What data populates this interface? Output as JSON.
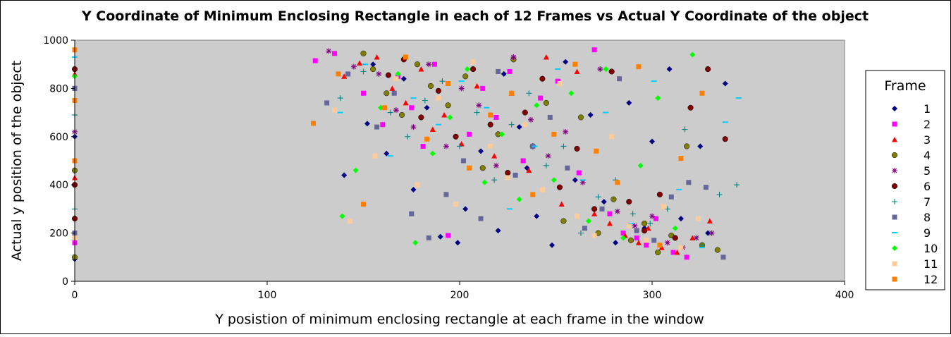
{
  "chart_data": {
    "type": "scatter",
    "title": "Y Coordinate of Minimum Enclosing Rectangle in each of 12 Frames vs Actual Y Coordinate of the object",
    "xlabel": "Y posistion of minimum enclosing rectangle at each frame in the window",
    "ylabel": "Actual y position of the object",
    "xlim": [
      0,
      400
    ],
    "ylim": [
      0,
      1000
    ],
    "x_ticks": [
      0,
      100,
      200,
      300,
      400
    ],
    "y_ticks": [
      0,
      200,
      400,
      600,
      800,
      1000
    ],
    "x_tick_labels": [
      "0",
      "100",
      "200",
      "300",
      "400"
    ],
    "y_tick_labels": [
      "0",
      "200",
      "400",
      "600",
      "800",
      "1000"
    ],
    "grid": false,
    "plot_background": "#cccccc",
    "legend": {
      "title": "Frame",
      "placement": "right"
    },
    "series": [
      {
        "name": "1",
        "color": "#000080",
        "marker": "diamond",
        "x": [
          0,
          0,
          0,
          140,
          152,
          155,
          162,
          171,
          176,
          183,
          190,
          199,
          203,
          211,
          220,
          223,
          231,
          235,
          240,
          248,
          255,
          260,
          268,
          275,
          281,
          288,
          296,
          300,
          309,
          315,
          325,
          329,
          338
        ],
        "y": [
          92,
          180,
          600,
          440,
          654,
          900,
          530,
          840,
          380,
          720,
          185,
          160,
          300,
          540,
          210,
          860,
          640,
          470,
          270,
          150,
          910,
          420,
          690,
          330,
          160,
          740,
          220,
          580,
          880,
          260,
          560,
          200,
          820
        ]
      },
      {
        "name": "2",
        "color": "#ff00ff",
        "marker": "square",
        "x": [
          0,
          0,
          125,
          135,
          150,
          160,
          168,
          175,
          181,
          187,
          194,
          205,
          212,
          219,
          226,
          233,
          242,
          251,
          262,
          270,
          278,
          285,
          292,
          297,
          302,
          311,
          318
        ],
        "y": [
          800,
          160,
          915,
          945,
          780,
          650,
          850,
          720,
          560,
          900,
          190,
          610,
          800,
          680,
          870,
          500,
          760,
          830,
          450,
          960,
          280,
          200,
          180,
          150,
          260,
          120,
          100
        ]
      },
      {
        "name": "3",
        "color": "#ff0000",
        "marker": "triangle",
        "x": [
          0,
          0,
          140,
          148,
          157,
          165,
          172,
          180,
          186,
          192,
          201,
          209,
          218,
          227,
          236,
          245,
          253,
          261,
          270,
          278,
          286,
          293,
          298,
          305,
          313,
          321,
          330
        ],
        "y": [
          430,
          860,
          850,
          905,
          930,
          800,
          740,
          880,
          630,
          690,
          570,
          810,
          520,
          780,
          460,
          930,
          320,
          870,
          280,
          240,
          190,
          160,
          220,
          140,
          120,
          180,
          250
        ]
      },
      {
        "name": "4",
        "color": "#808000",
        "marker": "circle",
        "x": [
          0,
          0,
          150,
          155,
          162,
          170,
          178,
          185,
          194,
          203,
          212,
          220,
          228,
          238,
          245,
          254,
          263,
          272,
          280,
          289,
          296,
          303,
          310,
          318,
          326,
          334
        ],
        "y": [
          100,
          460,
          945,
          880,
          780,
          690,
          900,
          810,
          730,
          850,
          470,
          610,
          920,
          560,
          740,
          250,
          680,
          200,
          340,
          170,
          240,
          120,
          190,
          560,
          150,
          130
        ]
      },
      {
        "name": "5",
        "color": "#800080",
        "marker": "star",
        "x": [
          0,
          132,
          145,
          158,
          167,
          176,
          184,
          193,
          201,
          210,
          219,
          228,
          237,
          246,
          255,
          264,
          273,
          282,
          291,
          300,
          308,
          316,
          323,
          331
        ],
        "y": [
          620,
          955,
          890,
          860,
          710,
          640,
          900,
          560,
          800,
          730,
          480,
          930,
          670,
          520,
          620,
          410,
          880,
          290,
          230,
          270,
          160,
          140,
          180,
          200
        ]
      },
      {
        "name": "6",
        "color": "#800000",
        "marker": "circle",
        "x": [
          0,
          0,
          0,
          163,
          171,
          180,
          189,
          198,
          207,
          216,
          225,
          234,
          243,
          252,
          261,
          270,
          279,
          288,
          296,
          304,
          312,
          320,
          329,
          338
        ],
        "y": [
          400,
          880,
          260,
          855,
          920,
          680,
          790,
          600,
          880,
          650,
          450,
          700,
          840,
          390,
          550,
          300,
          870,
          330,
          210,
          360,
          180,
          720,
          880,
          590
        ]
      },
      {
        "name": "7",
        "color": "#008080",
        "marker": "plus",
        "x": [
          0,
          0,
          138,
          150,
          164,
          173,
          182,
          191,
          200,
          209,
          218,
          227,
          236,
          245,
          254,
          263,
          272,
          281,
          290,
          299,
          308,
          317,
          326,
          335,
          344
        ],
        "y": [
          690,
          300,
          760,
          870,
          700,
          600,
          750,
          830,
          560,
          700,
          420,
          650,
          780,
          480,
          560,
          200,
          350,
          420,
          280,
          240,
          300,
          630,
          150,
          360,
          400
        ]
      },
      {
        "name": "8",
        "color": "#666699",
        "marker": "square",
        "x": [
          0,
          0,
          131,
          142,
          157,
          166,
          175,
          184,
          193,
          202,
          211,
          220,
          229,
          238,
          247,
          256,
          265,
          274,
          283,
          292,
          301,
          310,
          319,
          328,
          337
        ],
        "y": [
          200,
          800,
          740,
          860,
          640,
          780,
          280,
          180,
          360,
          500,
          260,
          870,
          440,
          560,
          680,
          470,
          220,
          300,
          840,
          210,
          170,
          350,
          410,
          390,
          100
        ]
      },
      {
        "name": "9",
        "color": "#00ccff",
        "marker": "dash",
        "x": [
          0,
          138,
          151,
          164,
          176,
          189,
          201,
          214,
          226,
          239,
          251,
          264,
          276,
          289,
          301,
          314,
          326,
          338,
          345
        ],
        "y": [
          930,
          700,
          900,
          520,
          760,
          650,
          830,
          720,
          300,
          560,
          880,
          420,
          700,
          240,
          830,
          380,
          140,
          660,
          760
        ]
      },
      {
        "name": "10",
        "color": "#00ff00",
        "marker": "diamond",
        "x": [
          0,
          139,
          146,
          159,
          168,
          177,
          186,
          195,
          204,
          213,
          222,
          231,
          240,
          249,
          258,
          267,
          276,
          285,
          294,
          303,
          312,
          321
        ],
        "y": [
          850,
          270,
          460,
          720,
          860,
          160,
          530,
          680,
          880,
          410,
          610,
          340,
          730,
          420,
          780,
          250,
          880,
          180,
          480,
          760,
          220,
          940
        ]
      },
      {
        "name": "11",
        "color": "#ffcc99",
        "marker": "square",
        "x": [
          0,
          135,
          143,
          156,
          167,
          178,
          189,
          198,
          207,
          216,
          225,
          234,
          243,
          252,
          261,
          270,
          279,
          288,
          297,
          306,
          315,
          324
        ],
        "y": [
          180,
          710,
          250,
          520,
          840,
          400,
          760,
          320,
          910,
          560,
          430,
          650,
          380,
          820,
          270,
          190,
          600,
          230,
          170,
          310,
          140,
          260
        ]
      },
      {
        "name": "12",
        "color": "#ff8000",
        "marker": "square",
        "x": [
          0,
          0,
          0,
          124,
          137,
          150,
          161,
          172,
          183,
          194,
          205,
          216,
          227,
          238,
          249,
          260,
          271,
          282,
          293,
          304,
          315,
          326
        ],
        "y": [
          960,
          750,
          500,
          655,
          860,
          320,
          720,
          930,
          590,
          820,
          470,
          690,
          780,
          360,
          610,
          900,
          540,
          410,
          890,
          150,
          510,
          780
        ]
      }
    ]
  }
}
